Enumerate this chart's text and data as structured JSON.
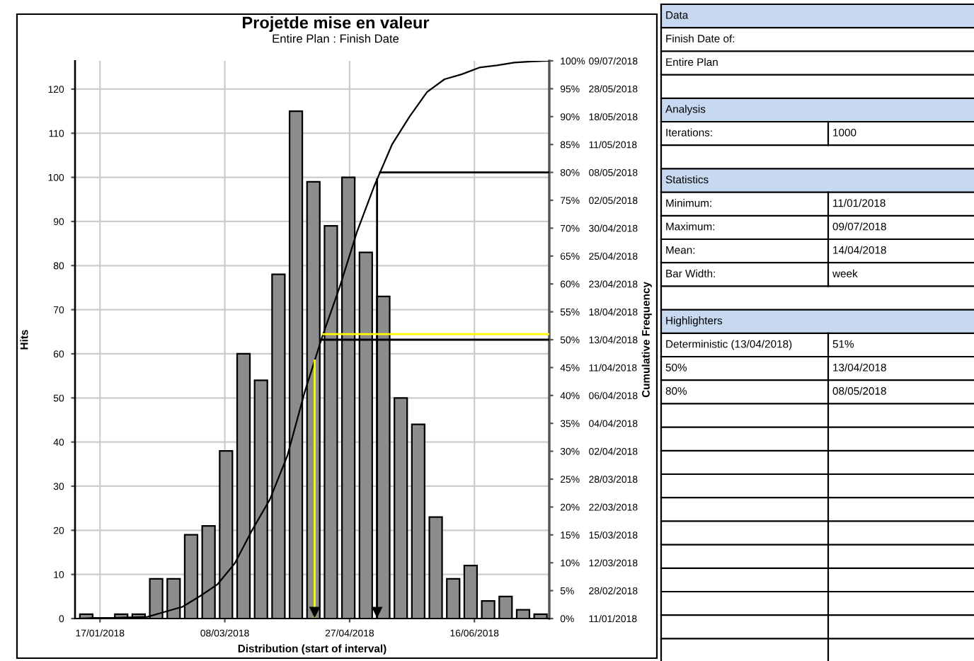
{
  "chart_data": [
    {
      "type": "histogram",
      "title": "Projetde mise en valeur",
      "subtitle": "Entire Plan : Finish Date",
      "xlabel": "Distribution (start of interval)",
      "ylabel": "Hits",
      "y2label": "Cumulative Frequency",
      "bins": [
        "2018-01-08",
        "2018-01-15",
        "2018-01-22",
        "2018-01-29",
        "2018-02-05",
        "2018-02-12",
        "2018-02-19",
        "2018-02-26",
        "2018-03-05",
        "2018-03-12",
        "2018-03-19",
        "2018-03-26",
        "2018-04-02",
        "2018-04-09",
        "2018-04-16",
        "2018-04-23",
        "2018-04-30",
        "2018-05-07",
        "2018-05-14",
        "2018-05-21",
        "2018-05-28",
        "2018-06-04",
        "2018-06-11",
        "2018-06-18",
        "2018-06-25",
        "2018-07-02",
        "2018-07-09",
        "2018-07-16"
      ],
      "series": [
        {
          "type": "histogram",
          "color": "#8c8c8c",
          "values": [
            1,
            0,
            1,
            1,
            9,
            9,
            19,
            21,
            38,
            60,
            54,
            78,
            115,
            99,
            89,
            100,
            83,
            73,
            50,
            44,
            23,
            9,
            12,
            4,
            5,
            2,
            1
          ]
        },
        {
          "type": "line",
          "axis": "y2",
          "color": "#000000",
          "x": [
            "2018-01-08",
            "2018-01-15",
            "2018-01-22",
            "2018-01-29",
            "2018-02-05",
            "2018-02-12",
            "2018-02-19",
            "2018-02-26",
            "2018-03-05",
            "2018-03-12",
            "2018-03-19",
            "2018-03-26",
            "2018-04-02",
            "2018-04-09",
            "2018-04-16",
            "2018-04-23",
            "2018-04-30",
            "2018-05-07",
            "2018-05-14",
            "2018-05-21",
            "2018-05-28",
            "2018-06-04",
            "2018-06-11",
            "2018-06-18",
            "2018-06-25",
            "2018-07-02",
            "2018-07-09",
            "2018-07-16"
          ],
          "values": [
            0,
            0.1,
            0.1,
            0.2,
            0.3,
            1.2,
            2.1,
            4.0,
            6.1,
            9.9,
            15.9,
            21.3,
            29.1,
            40.6,
            50.5,
            59.4,
            69.4,
            77.7,
            85.0,
            90.0,
            94.4,
            96.7,
            97.6,
            98.8,
            99.2,
            99.7,
            99.9,
            100
          ]
        }
      ],
      "xlim": [
        "2018-01-07",
        "2018-07-16"
      ],
      "xticks": [
        {
          "value": "2018-01-17",
          "label": "17/01/2018"
        },
        {
          "value": "2018-03-08",
          "label": "08/03/2018"
        },
        {
          "value": "2018-04-27",
          "label": "27/04/2018"
        },
        {
          "value": "2018-06-16",
          "label": "16/06/2018"
        }
      ],
      "ylim": [
        0,
        126.4
      ],
      "yticks": [
        0,
        10,
        20,
        30,
        40,
        50,
        60,
        70,
        80,
        90,
        100,
        110,
        120
      ],
      "y2lim": [
        0,
        100
      ],
      "y2ticks": [
        {
          "value": 0,
          "label": "0%"
        },
        {
          "value": 5,
          "label": "5%"
        },
        {
          "value": 10,
          "label": "10%"
        },
        {
          "value": 15,
          "label": "15%"
        },
        {
          "value": 20,
          "label": "20%"
        },
        {
          "value": 25,
          "label": "25%"
        },
        {
          "value": 30,
          "label": "30%"
        },
        {
          "value": 35,
          "label": "35%"
        },
        {
          "value": 40,
          "label": "40%"
        },
        {
          "value": 45,
          "label": "45%"
        },
        {
          "value": 50,
          "label": "50%"
        },
        {
          "value": 55,
          "label": "55%"
        },
        {
          "value": 60,
          "label": "60%"
        },
        {
          "value": 65,
          "label": "65%"
        },
        {
          "value": 70,
          "label": "70%"
        },
        {
          "value": 75,
          "label": "75%"
        },
        {
          "value": 80,
          "label": "80%"
        },
        {
          "value": 85,
          "label": "85%"
        },
        {
          "value": 90,
          "label": "90%"
        },
        {
          "value": 95,
          "label": "95%"
        },
        {
          "value": 100,
          "label": "100%"
        }
      ],
      "y2_categories": [
        "09/07/2018",
        "28/05/2018",
        "18/05/2018",
        "11/05/2018",
        "08/05/2018",
        "02/05/2018",
        "30/04/2018",
        "25/04/2018",
        "23/04/2018",
        "18/04/2018",
        "13/04/2018",
        "11/04/2018",
        "06/04/2018",
        "04/04/2018",
        "02/04/2018",
        "28/03/2018",
        "22/03/2018",
        "15/03/2018",
        "12/03/2018",
        "28/02/2018",
        "11/01/2018"
      ],
      "grid": true,
      "ref_lines": [
        {
          "axis": "y2",
          "value": 50,
          "color": "#000000"
        },
        {
          "axis": "y2",
          "value": 80,
          "color": "#000000"
        },
        {
          "axis": "x",
          "value": "2018-05-08",
          "color": "#000000"
        },
        {
          "axis": "y2",
          "value": 51,
          "color": "#ffff00"
        },
        {
          "axis": "x",
          "value": "2018-04-13",
          "color": "#ffff00"
        }
      ]
    },
    {
      "type": "other",
      "cell_labels": [
        [
          "Data"
        ],
        [
          "Finish Date of:"
        ],
        [
          "Entire Plan"
        ],
        [
          "Analysis"
        ],
        [
          "Iterations:",
          "1000"
        ],
        [
          "Statistics"
        ],
        [
          "Minimum:",
          "11/01/2018"
        ],
        [
          "Maximum:",
          "09/07/2018"
        ],
        [
          "Mean:",
          "14/04/2018"
        ],
        [
          "Bar Width:",
          "week"
        ],
        [
          "Highlighters"
        ],
        [
          "Deterministic (13/04/2018)",
          "51%"
        ],
        [
          "50%",
          "13/04/2018"
        ],
        [
          "80%",
          "08/05/2018"
        ],
        [
          null,
          null
        ],
        [
          null,
          null
        ],
        [
          null,
          null
        ],
        [
          null,
          null
        ],
        [
          null,
          null
        ],
        [
          null,
          null
        ],
        [
          null,
          null
        ],
        [
          null,
          null
        ],
        [
          null,
          null
        ],
        [
          null,
          null
        ],
        [
          null,
          null
        ]
      ]
    }
  ]
}
